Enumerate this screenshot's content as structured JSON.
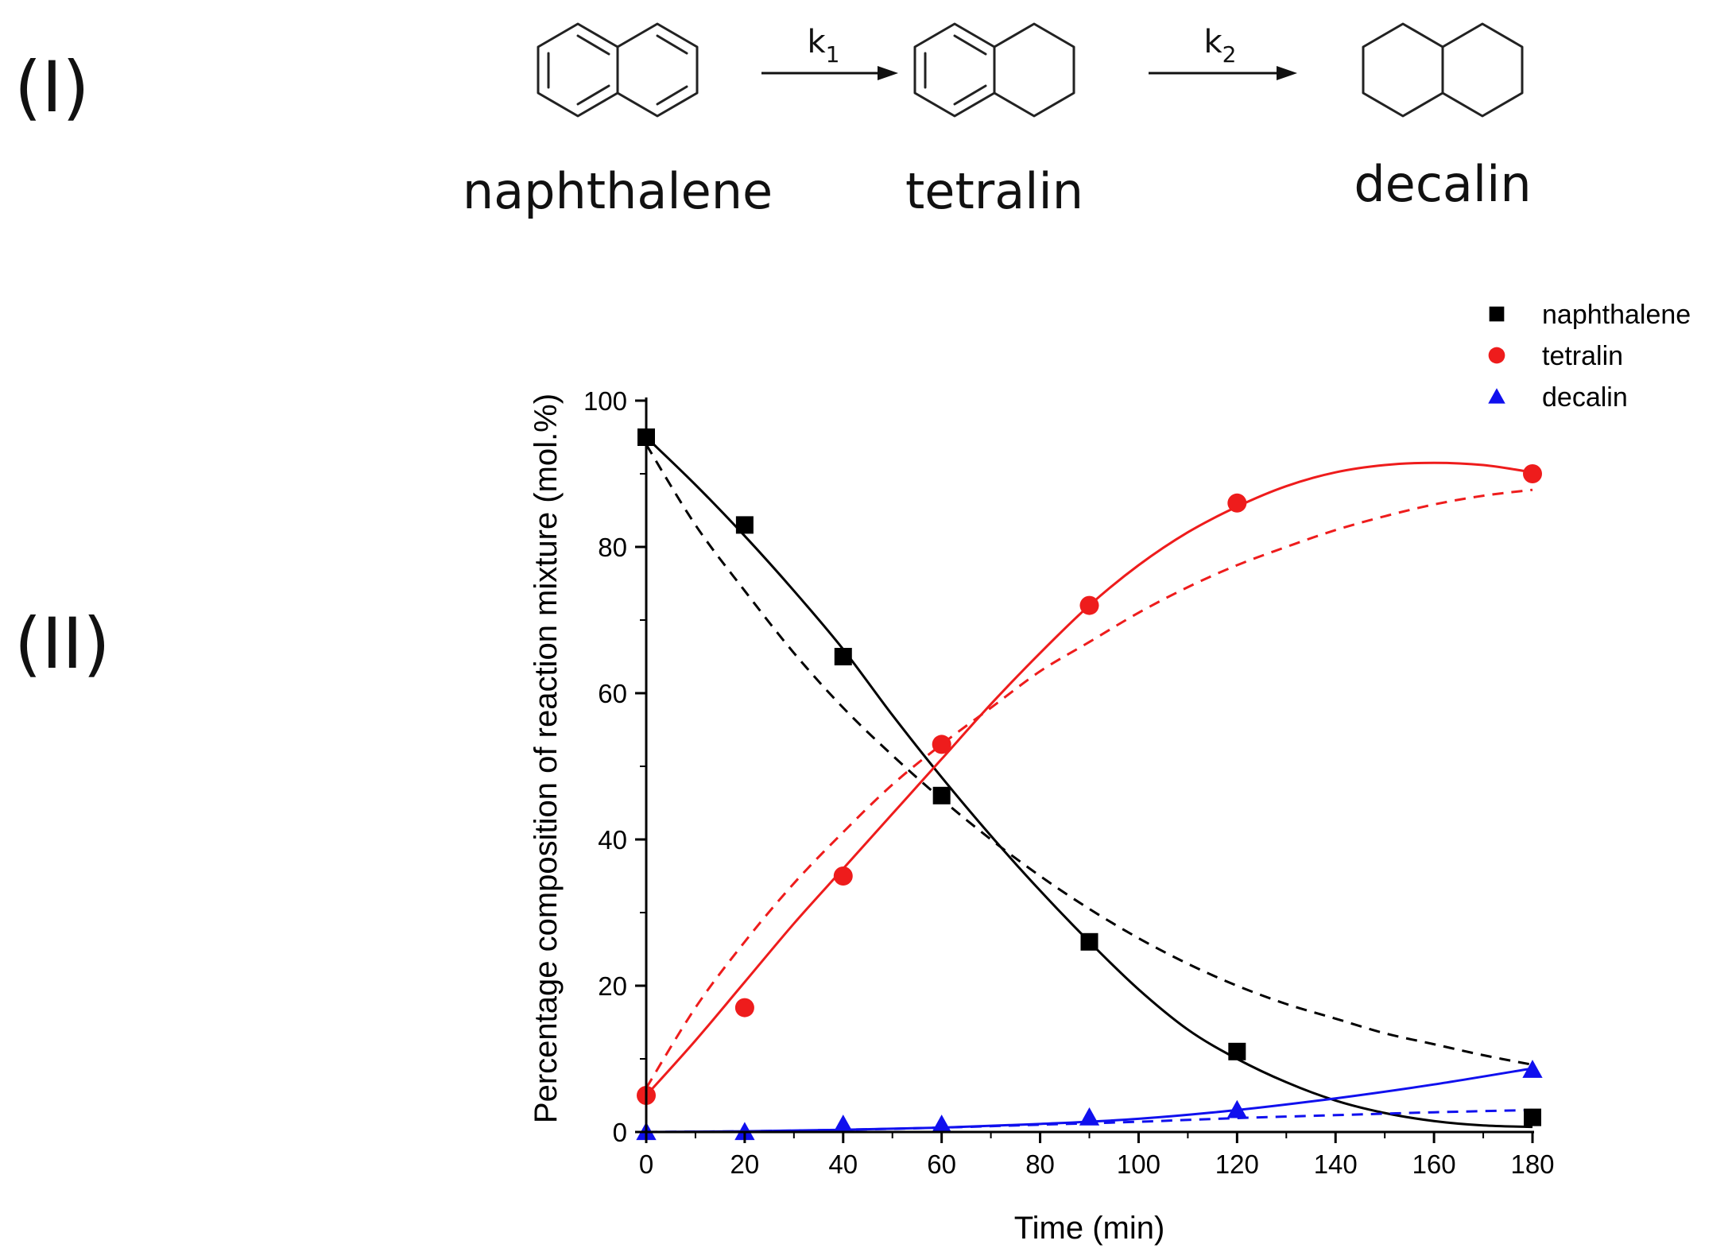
{
  "panels": {
    "scheme_label": "(I)",
    "chart_label": "(II)"
  },
  "scheme": {
    "compounds": [
      "naphthalene",
      "tetralin",
      "decalin"
    ],
    "arrow1": {
      "k": "k",
      "sub": "1"
    },
    "arrow2": {
      "k": "k",
      "sub": "2"
    }
  },
  "chart_data": {
    "type": "scatter",
    "xlabel": "Time (min)",
    "ylabel": "Percentage composition of reaction mixture (mol.%)",
    "xlim": [
      0,
      180
    ],
    "ylim": [
      0,
      100
    ],
    "xticks": [
      0,
      20,
      40,
      60,
      80,
      100,
      120,
      140,
      160,
      180
    ],
    "yticks": [
      0,
      20,
      40,
      60,
      80,
      100
    ],
    "grid": false,
    "legend_position": "top-right",
    "series": [
      {
        "name": "naphthalene",
        "color": "#000000",
        "marker": "square",
        "x": [
          0,
          20,
          40,
          60,
          90,
          120,
          180
        ],
        "y": [
          95,
          83,
          65,
          46,
          26,
          11,
          2
        ],
        "fit_solid": [
          [
            0,
            95
          ],
          [
            10,
            88.5
          ],
          [
            20,
            81.5
          ],
          [
            30,
            74
          ],
          [
            40,
            66
          ],
          [
            50,
            57
          ],
          [
            60,
            48.5
          ],
          [
            70,
            40.5
          ],
          [
            80,
            33
          ],
          [
            90,
            26
          ],
          [
            100,
            19.5
          ],
          [
            110,
            14
          ],
          [
            120,
            10
          ],
          [
            130,
            6.8
          ],
          [
            140,
            4.3
          ],
          [
            150,
            2.6
          ],
          [
            160,
            1.5
          ],
          [
            170,
            0.9
          ],
          [
            180,
            0.7
          ]
        ],
        "fit_dashed": [
          [
            0,
            94
          ],
          [
            10,
            83
          ],
          [
            20,
            74
          ],
          [
            30,
            65.5
          ],
          [
            40,
            58
          ],
          [
            50,
            51.5
          ],
          [
            60,
            45.5
          ],
          [
            70,
            40
          ],
          [
            80,
            35
          ],
          [
            90,
            30.5
          ],
          [
            100,
            26.5
          ],
          [
            110,
            23
          ],
          [
            120,
            20
          ],
          [
            130,
            17.5
          ],
          [
            140,
            15.5
          ],
          [
            150,
            13.5
          ],
          [
            160,
            12
          ],
          [
            170,
            10.5
          ],
          [
            180,
            9.2
          ]
        ]
      },
      {
        "name": "tetralin",
        "color": "#ee1c1c",
        "marker": "circle",
        "x": [
          0,
          20,
          40,
          60,
          90,
          120,
          180
        ],
        "y": [
          5,
          17,
          35,
          53,
          72,
          86,
          90
        ],
        "fit_solid": [
          [
            0,
            5
          ],
          [
            10,
            12.5
          ],
          [
            20,
            20.5
          ],
          [
            30,
            28.5
          ],
          [
            40,
            36
          ],
          [
            50,
            43.5
          ],
          [
            60,
            51
          ],
          [
            70,
            58.5
          ],
          [
            80,
            65.5
          ],
          [
            90,
            72
          ],
          [
            100,
            77.5
          ],
          [
            110,
            82
          ],
          [
            120,
            85.5
          ],
          [
            130,
            88.3
          ],
          [
            140,
            90.2
          ],
          [
            150,
            91.2
          ],
          [
            160,
            91.5
          ],
          [
            170,
            91.2
          ],
          [
            180,
            90.2
          ]
        ],
        "fit_dashed": [
          [
            0,
            6
          ],
          [
            10,
            17
          ],
          [
            20,
            26
          ],
          [
            30,
            34
          ],
          [
            40,
            41
          ],
          [
            50,
            47.5
          ],
          [
            60,
            53
          ],
          [
            70,
            58
          ],
          [
            80,
            63
          ],
          [
            90,
            67
          ],
          [
            100,
            71
          ],
          [
            110,
            74.5
          ],
          [
            120,
            77.5
          ],
          [
            130,
            80
          ],
          [
            140,
            82.3
          ],
          [
            150,
            84.2
          ],
          [
            160,
            85.8
          ],
          [
            170,
            87
          ],
          [
            180,
            87.8
          ]
        ]
      },
      {
        "name": "decalin",
        "color": "#1010ee",
        "marker": "triangle",
        "x": [
          0,
          20,
          40,
          60,
          90,
          120,
          180
        ],
        "y": [
          0,
          0,
          1,
          1,
          2,
          3,
          8.5
        ],
        "fit_solid": [
          [
            0,
            0
          ],
          [
            20,
            0.1
          ],
          [
            40,
            0.3
          ],
          [
            60,
            0.6
          ],
          [
            80,
            1.1
          ],
          [
            100,
            1.8
          ],
          [
            120,
            3
          ],
          [
            140,
            4.6
          ],
          [
            160,
            6.5
          ],
          [
            180,
            8.7
          ]
        ],
        "fit_dashed": [
          [
            0,
            0
          ],
          [
            20,
            0.1
          ],
          [
            40,
            0.3
          ],
          [
            60,
            0.6
          ],
          [
            80,
            1
          ],
          [
            100,
            1.4
          ],
          [
            120,
            1.9
          ],
          [
            140,
            2.3
          ],
          [
            160,
            2.7
          ],
          [
            180,
            3
          ]
        ]
      }
    ]
  }
}
